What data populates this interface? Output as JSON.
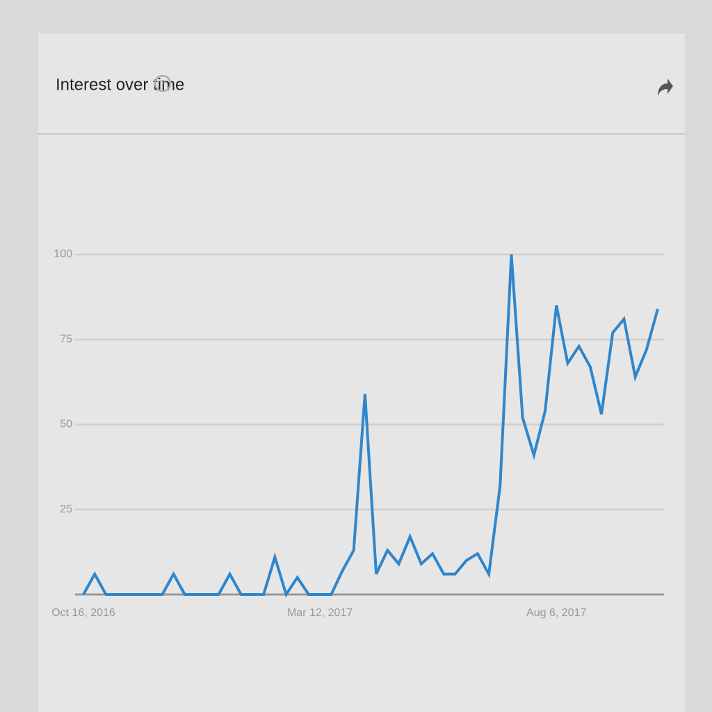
{
  "header": {
    "help_icon": "?"
  },
  "chart_data": {
    "type": "line",
    "title": "Interest over time",
    "categories": [
      "Oct 16, 2016",
      null,
      null,
      null,
      null,
      null,
      null,
      null,
      null,
      null,
      null,
      null,
      null,
      null,
      null,
      null,
      null,
      null,
      null,
      null,
      null,
      "Mar 12, 2017",
      null,
      null,
      null,
      null,
      null,
      null,
      null,
      null,
      null,
      null,
      null,
      null,
      null,
      null,
      null,
      null,
      null,
      null,
      null,
      null,
      "Aug 6, 2017",
      null,
      null,
      null,
      null,
      null,
      null,
      null,
      null,
      null
    ],
    "values": [
      0,
      6,
      0,
      0,
      0,
      0,
      0,
      0,
      6,
      0,
      0,
      0,
      0,
      6,
      0,
      0,
      0,
      11,
      0,
      5,
      0,
      0,
      0,
      7,
      13,
      59,
      6,
      13,
      9,
      17,
      9,
      12,
      6,
      6,
      10,
      12,
      6,
      32,
      100,
      52,
      41,
      54,
      85,
      68,
      73,
      67,
      53,
      77,
      81,
      64,
      72,
      84
    ],
    "color": "#2f86cc",
    "ylim": [
      0,
      100
    ],
    "yticks": [
      25,
      50,
      75,
      100
    ],
    "grid": true
  }
}
